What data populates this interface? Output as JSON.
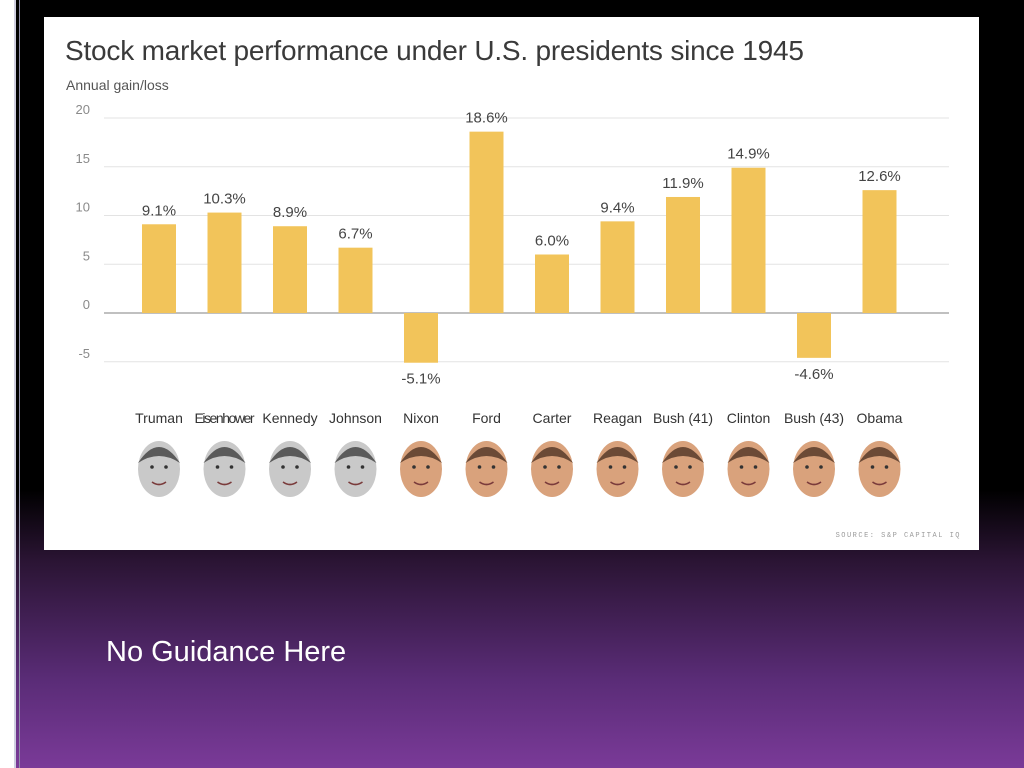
{
  "slide": {
    "caption": "No Guidance Here"
  },
  "chart_data": {
    "type": "bar",
    "title": "Stock market performance under U.S. presidents since 1945",
    "subtitle": "Annual gain/loss",
    "categories": [
      "Truman",
      "Eisenhower",
      "Kennedy",
      "Johnson",
      "Nixon",
      "Ford",
      "Carter",
      "Reagan",
      "Bush (41)",
      "Clinton",
      "Bush (43)",
      "Obama"
    ],
    "values": [
      9.1,
      10.3,
      8.9,
      6.7,
      -5.1,
      18.6,
      6.0,
      9.4,
      11.9,
      14.9,
      -4.6,
      12.6
    ],
    "value_labels": [
      "9.1%",
      "10.3%",
      "8.9%",
      "6.7%",
      "-5.1%",
      "18.6%",
      "6.0%",
      "9.4%",
      "11.9%",
      "14.9%",
      "-4.6%",
      "12.6%"
    ],
    "yticks": [
      20,
      15,
      10,
      5,
      0,
      -5
    ],
    "ylim": [
      -6,
      20
    ],
    "grid": true,
    "bar_color": "#f2c45a",
    "source": "SOURCE: S&P CAPITAL IQ"
  }
}
